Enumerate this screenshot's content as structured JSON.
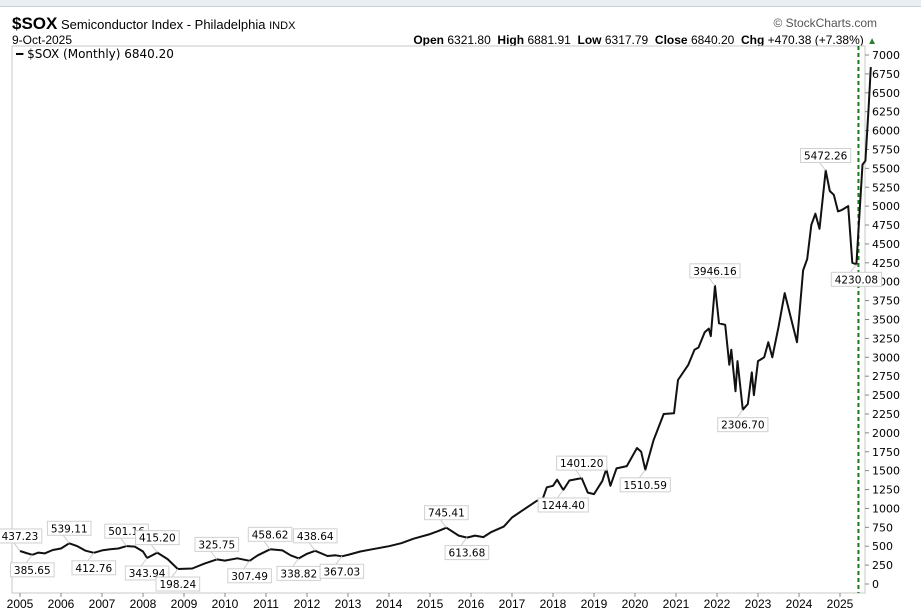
{
  "header": {
    "symbol": "$SOX",
    "name": "Semiconductor Index - Philadelphia",
    "exchange": "INDX",
    "date": "9-Oct-2025",
    "copyright": "© StockCharts.com",
    "open_label": "Open",
    "open": "6321.80",
    "high_label": "High",
    "high": "6881.91",
    "low_label": "Low",
    "low": "6317.79",
    "close_label": "Close",
    "close": "6840.20",
    "chg_label": "Chg",
    "chg": "+470.38 (+7.38%)",
    "chg_arrow": "▲"
  },
  "legend": {
    "label": "$SOX (Monthly) 6840.20"
  },
  "colors": {
    "line": "#111111",
    "dashed": "#1a7a1a",
    "up": "#2e7d32"
  },
  "chart_data": {
    "type": "line",
    "title": "$SOX Semiconductor Index - Philadelphia",
    "ylim": [
      0,
      7000
    ],
    "xlim": [
      2005,
      2025.9
    ],
    "yticks": [
      0,
      250,
      500,
      750,
      1000,
      1250,
      1500,
      1750,
      2000,
      2250,
      2500,
      2750,
      3000,
      3250,
      3500,
      3750,
      4000,
      4250,
      4500,
      4750,
      5000,
      5250,
      5500,
      5750,
      6000,
      6250,
      6500,
      6750,
      7000
    ],
    "xticks": [
      "2005",
      "2006",
      "2007",
      "2008",
      "2009",
      "2010",
      "2011",
      "2012",
      "2013",
      "2014",
      "2015",
      "2016",
      "2017",
      "2018",
      "2019",
      "2020",
      "2021",
      "2022",
      "2023",
      "2024",
      "2025"
    ],
    "series": [
      {
        "name": "$SOX (Monthly)",
        "points": [
          [
            2005.0,
            437
          ],
          [
            2005.15,
            410
          ],
          [
            2005.3,
            386
          ],
          [
            2005.45,
            415
          ],
          [
            2005.6,
            405
          ],
          [
            2005.8,
            450
          ],
          [
            2006.0,
            470
          ],
          [
            2006.2,
            539
          ],
          [
            2006.4,
            500
          ],
          [
            2006.6,
            440
          ],
          [
            2006.8,
            413
          ],
          [
            2007.0,
            445
          ],
          [
            2007.2,
            460
          ],
          [
            2007.4,
            470
          ],
          [
            2007.6,
            501
          ],
          [
            2007.8,
            495
          ],
          [
            2008.0,
            430
          ],
          [
            2008.1,
            344
          ],
          [
            2008.35,
            415
          ],
          [
            2008.6,
            330
          ],
          [
            2008.85,
            198
          ],
          [
            2009.2,
            205
          ],
          [
            2009.5,
            270
          ],
          [
            2009.8,
            326
          ],
          [
            2010.0,
            310
          ],
          [
            2010.3,
            340
          ],
          [
            2010.6,
            307
          ],
          [
            2010.8,
            380
          ],
          [
            2011.1,
            459
          ],
          [
            2011.4,
            445
          ],
          [
            2011.6,
            380
          ],
          [
            2011.8,
            339
          ],
          [
            2012.0,
            400
          ],
          [
            2012.2,
            439
          ],
          [
            2012.5,
            370
          ],
          [
            2012.7,
            380
          ],
          [
            2012.85,
            367
          ],
          [
            2013.0,
            385
          ],
          [
            2013.3,
            430
          ],
          [
            2013.6,
            460
          ],
          [
            2014.0,
            500
          ],
          [
            2014.3,
            540
          ],
          [
            2014.6,
            600
          ],
          [
            2015.0,
            660
          ],
          [
            2015.2,
            700
          ],
          [
            2015.4,
            745
          ],
          [
            2015.7,
            640
          ],
          [
            2015.9,
            614
          ],
          [
            2016.1,
            640
          ],
          [
            2016.3,
            620
          ],
          [
            2016.5,
            690
          ],
          [
            2016.8,
            760
          ],
          [
            2017.0,
            880
          ],
          [
            2017.3,
            990
          ],
          [
            2017.6,
            1100
          ],
          [
            2017.75,
            1130
          ],
          [
            2017.85,
            1280
          ],
          [
            2018.0,
            1300
          ],
          [
            2018.1,
            1380
          ],
          [
            2018.25,
            1244
          ],
          [
            2018.4,
            1370
          ],
          [
            2018.7,
            1401
          ],
          [
            2018.85,
            1210
          ],
          [
            2019.0,
            1190
          ],
          [
            2019.2,
            1360
          ],
          [
            2019.3,
            1520
          ],
          [
            2019.4,
            1300
          ],
          [
            2019.55,
            1530
          ],
          [
            2019.8,
            1560
          ],
          [
            2020.05,
            1800
          ],
          [
            2020.15,
            1750
          ],
          [
            2020.25,
            1511
          ],
          [
            2020.45,
            1900
          ],
          [
            2020.7,
            2250
          ],
          [
            2020.95,
            2260
          ],
          [
            2021.05,
            2700
          ],
          [
            2021.3,
            2900
          ],
          [
            2021.45,
            3100
          ],
          [
            2021.55,
            3130
          ],
          [
            2021.7,
            3330
          ],
          [
            2021.8,
            3380
          ],
          [
            2021.85,
            3280
          ],
          [
            2021.95,
            3946
          ],
          [
            2022.05,
            3450
          ],
          [
            2022.2,
            3430
          ],
          [
            2022.3,
            2900
          ],
          [
            2022.35,
            3100
          ],
          [
            2022.45,
            2550
          ],
          [
            2022.5,
            2950
          ],
          [
            2022.63,
            2307
          ],
          [
            2022.75,
            2380
          ],
          [
            2022.85,
            2800
          ],
          [
            2022.9,
            2500
          ],
          [
            2023.0,
            2950
          ],
          [
            2023.15,
            3000
          ],
          [
            2023.25,
            3200
          ],
          [
            2023.35,
            3000
          ],
          [
            2023.5,
            3400
          ],
          [
            2023.65,
            3850
          ],
          [
            2023.95,
            3200
          ],
          [
            2024.1,
            4150
          ],
          [
            2024.2,
            4300
          ],
          [
            2024.3,
            4750
          ],
          [
            2024.4,
            4900
          ],
          [
            2024.5,
            4700
          ],
          [
            2024.65,
            5472
          ],
          [
            2024.75,
            5200
          ],
          [
            2024.85,
            5150
          ],
          [
            2024.95,
            4930
          ],
          [
            2025.05,
            4950
          ],
          [
            2025.2,
            5000
          ],
          [
            2025.3,
            4250
          ],
          [
            2025.4,
            4230
          ],
          [
            2025.55,
            5550
          ],
          [
            2025.62,
            5600
          ],
          [
            2025.7,
            6320
          ],
          [
            2025.75,
            6840
          ]
        ]
      }
    ],
    "annotations": [
      {
        "text": "437.23",
        "x": 2005.0,
        "y": 437,
        "pos": "above"
      },
      {
        "text": "385.65",
        "x": 2005.3,
        "y": 386,
        "pos": "below"
      },
      {
        "text": "539.11",
        "x": 2006.2,
        "y": 539,
        "pos": "above"
      },
      {
        "text": "412.76",
        "x": 2006.8,
        "y": 413,
        "pos": "below"
      },
      {
        "text": "501.16",
        "x": 2007.6,
        "y": 501,
        "pos": "above"
      },
      {
        "text": "343.94",
        "x": 2008.1,
        "y": 344,
        "pos": "below"
      },
      {
        "text": "415.20",
        "x": 2008.35,
        "y": 415,
        "pos": "above"
      },
      {
        "text": "198.24",
        "x": 2008.85,
        "y": 198,
        "pos": "below"
      },
      {
        "text": "325.75",
        "x": 2009.8,
        "y": 326,
        "pos": "above"
      },
      {
        "text": "307.49",
        "x": 2010.6,
        "y": 307,
        "pos": "below"
      },
      {
        "text": "458.62",
        "x": 2011.1,
        "y": 459,
        "pos": "above"
      },
      {
        "text": "338.82",
        "x": 2011.8,
        "y": 339,
        "pos": "below"
      },
      {
        "text": "438.64",
        "x": 2012.2,
        "y": 439,
        "pos": "above"
      },
      {
        "text": "367.03",
        "x": 2012.85,
        "y": 367,
        "pos": "below"
      },
      {
        "text": "745.41",
        "x": 2015.4,
        "y": 745,
        "pos": "above"
      },
      {
        "text": "613.68",
        "x": 2015.9,
        "y": 614,
        "pos": "below"
      },
      {
        "text": "1244.40",
        "x": 2018.25,
        "y": 1244,
        "pos": "below"
      },
      {
        "text": "1401.20",
        "x": 2018.7,
        "y": 1401,
        "pos": "above"
      },
      {
        "text": "1510.59",
        "x": 2020.25,
        "y": 1511,
        "pos": "below"
      },
      {
        "text": "3946.16",
        "x": 2021.95,
        "y": 3946,
        "pos": "above"
      },
      {
        "text": "2306.70",
        "x": 2022.63,
        "y": 2307,
        "pos": "below"
      },
      {
        "text": "5472.26",
        "x": 2024.65,
        "y": 5472,
        "pos": "above"
      },
      {
        "text": "4230.08",
        "x": 2025.4,
        "y": 4230,
        "pos": "below"
      }
    ],
    "vertical_marker": {
      "x": 2025.45,
      "style": "dashed"
    }
  }
}
